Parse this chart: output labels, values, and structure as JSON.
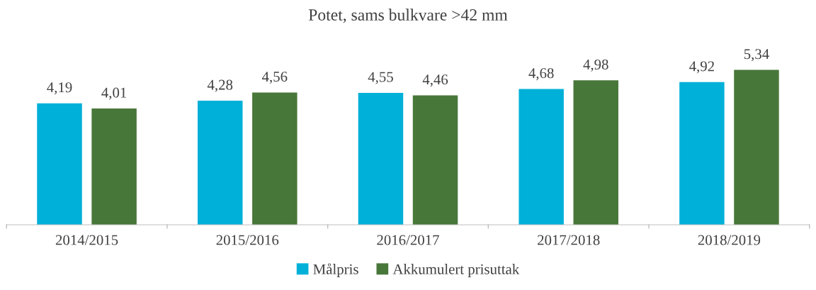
{
  "chart_data": {
    "type": "bar",
    "title": "Potet, sams bulkvare >42 mm",
    "categories": [
      "2014/2015",
      "2015/2016",
      "2016/2017",
      "2017/2018",
      "2018/2019"
    ],
    "series": [
      {
        "name": "Målpris",
        "color": "#00b0d8",
        "values": [
          4.19,
          4.28,
          4.55,
          4.68,
          4.92
        ],
        "value_labels": [
          "4,19",
          "4,28",
          "4,55",
          "4,68",
          "4,92"
        ]
      },
      {
        "name": "Akkumulert prisuttak",
        "color": "#48773a",
        "values": [
          4.01,
          4.56,
          4.46,
          4.98,
          5.34
        ],
        "value_labels": [
          "4,01",
          "4,56",
          "4,46",
          "4,98",
          "5,34"
        ]
      }
    ],
    "tick_labels": "x",
    "legend": "bottom"
  }
}
